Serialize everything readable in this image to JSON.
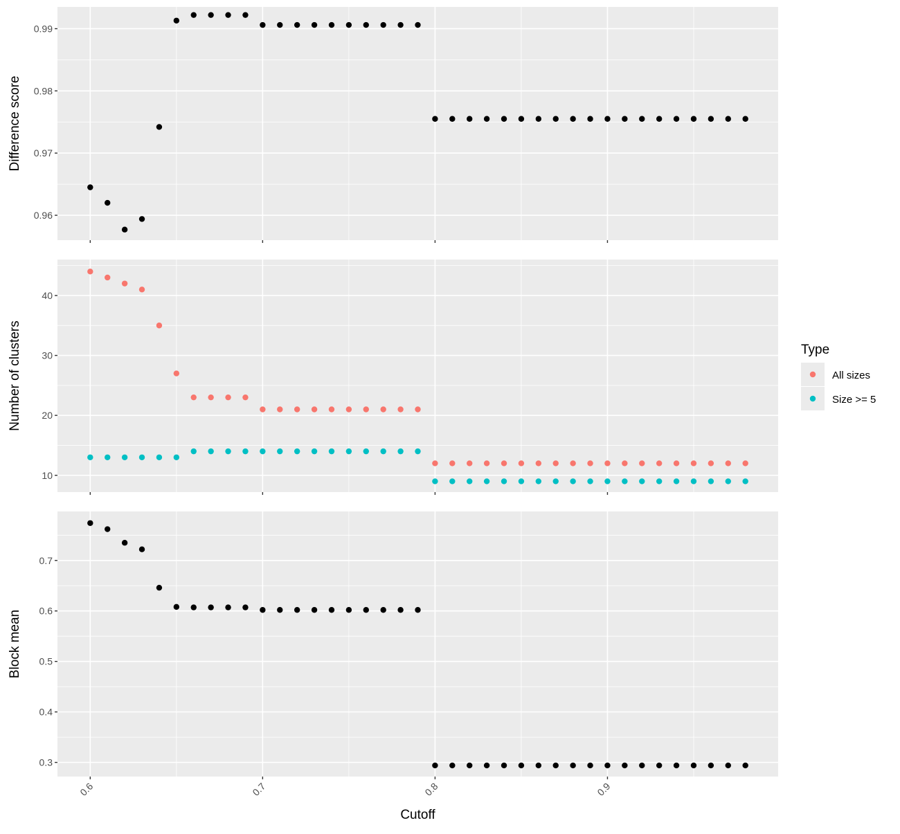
{
  "chart_data": {
    "type": "scatter",
    "layout": "faceted-vertical",
    "xlabel": "Cutoff",
    "x_range": [
      0.581,
      0.999
    ],
    "x_ticks": [
      0.6,
      0.7,
      0.8,
      0.9
    ],
    "x_tick_labels": [
      "0.6",
      "0.7",
      "0.8",
      "0.9"
    ],
    "x": [
      0.6,
      0.61,
      0.62,
      0.63,
      0.64,
      0.65,
      0.66,
      0.67,
      0.68,
      0.69,
      0.7,
      0.71,
      0.72,
      0.73,
      0.74,
      0.75,
      0.76,
      0.77,
      0.78,
      0.79,
      0.8,
      0.81,
      0.82,
      0.83,
      0.84,
      0.85,
      0.86,
      0.87,
      0.88,
      0.89,
      0.9,
      0.91,
      0.92,
      0.93,
      0.94,
      0.95,
      0.96,
      0.97,
      0.98
    ],
    "grid": true,
    "panels": [
      {
        "ylabel": "Difference score",
        "y_range": [
          0.956,
          0.9935
        ],
        "y_ticks": [
          0.96,
          0.97,
          0.98,
          0.99
        ],
        "y_tick_labels": [
          "0.96",
          "0.97",
          "0.98",
          "0.99"
        ],
        "series": [
          {
            "color": "#000000",
            "values": [
              0.9645,
              0.962,
              0.9577,
              0.9594,
              0.9742,
              0.9913,
              0.9922,
              0.9922,
              0.9922,
              0.9922,
              0.9906,
              0.9906,
              0.9906,
              0.9906,
              0.9906,
              0.9906,
              0.9906,
              0.9906,
              0.9906,
              0.9906,
              0.9755,
              0.9755,
              0.9755,
              0.9755,
              0.9755,
              0.9755,
              0.9755,
              0.9755,
              0.9755,
              0.9755,
              0.9755,
              0.9755,
              0.9755,
              0.9755,
              0.9755,
              0.9755,
              0.9755,
              0.9755,
              0.9755
            ]
          }
        ]
      },
      {
        "ylabel": "Number of clusters",
        "y_range": [
          7.2,
          46.0
        ],
        "y_ticks": [
          10,
          20,
          30,
          40
        ],
        "y_tick_labels": [
          "10",
          "20",
          "30",
          "40"
        ],
        "series": [
          {
            "name": "All sizes",
            "color": "#f8766d",
            "values": [
              44,
              43,
              42,
              41,
              35,
              27,
              23,
              23,
              23,
              23,
              21,
              21,
              21,
              21,
              21,
              21,
              21,
              21,
              21,
              21,
              12,
              12,
              12,
              12,
              12,
              12,
              12,
              12,
              12,
              12,
              12,
              12,
              12,
              12,
              12,
              12,
              12,
              12,
              12
            ]
          },
          {
            "name": "Size >= 5",
            "color": "#00bfc4",
            "values": [
              13,
              13,
              13,
              13,
              13,
              13,
              14,
              14,
              14,
              14,
              14,
              14,
              14,
              14,
              14,
              14,
              14,
              14,
              14,
              14,
              9,
              9,
              9,
              9,
              9,
              9,
              9,
              9,
              9,
              9,
              9,
              9,
              9,
              9,
              9,
              9,
              9,
              9,
              9
            ]
          }
        ]
      },
      {
        "ylabel": "Block mean",
        "y_range": [
          0.272,
          0.797
        ],
        "y_ticks": [
          0.3,
          0.4,
          0.5,
          0.6,
          0.7
        ],
        "y_tick_labels": [
          "0.3",
          "0.4",
          "0.5",
          "0.6",
          "0.7"
        ],
        "series": [
          {
            "color": "#000000",
            "values": [
              0.774,
              0.762,
              0.735,
              0.722,
              0.646,
              0.608,
              0.607,
              0.607,
              0.607,
              0.607,
              0.602,
              0.602,
              0.602,
              0.602,
              0.602,
              0.602,
              0.602,
              0.602,
              0.602,
              0.602,
              0.294,
              0.294,
              0.294,
              0.294,
              0.294,
              0.294,
              0.294,
              0.294,
              0.294,
              0.294,
              0.294,
              0.294,
              0.294,
              0.294,
              0.294,
              0.294,
              0.294,
              0.294,
              0.294
            ]
          }
        ]
      }
    ],
    "legend": {
      "title": "Type",
      "placement": "right",
      "entries": [
        {
          "label": "All sizes",
          "color": "#f8766d"
        },
        {
          "label": "Size >= 5",
          "color": "#00bfc4"
        }
      ]
    }
  }
}
